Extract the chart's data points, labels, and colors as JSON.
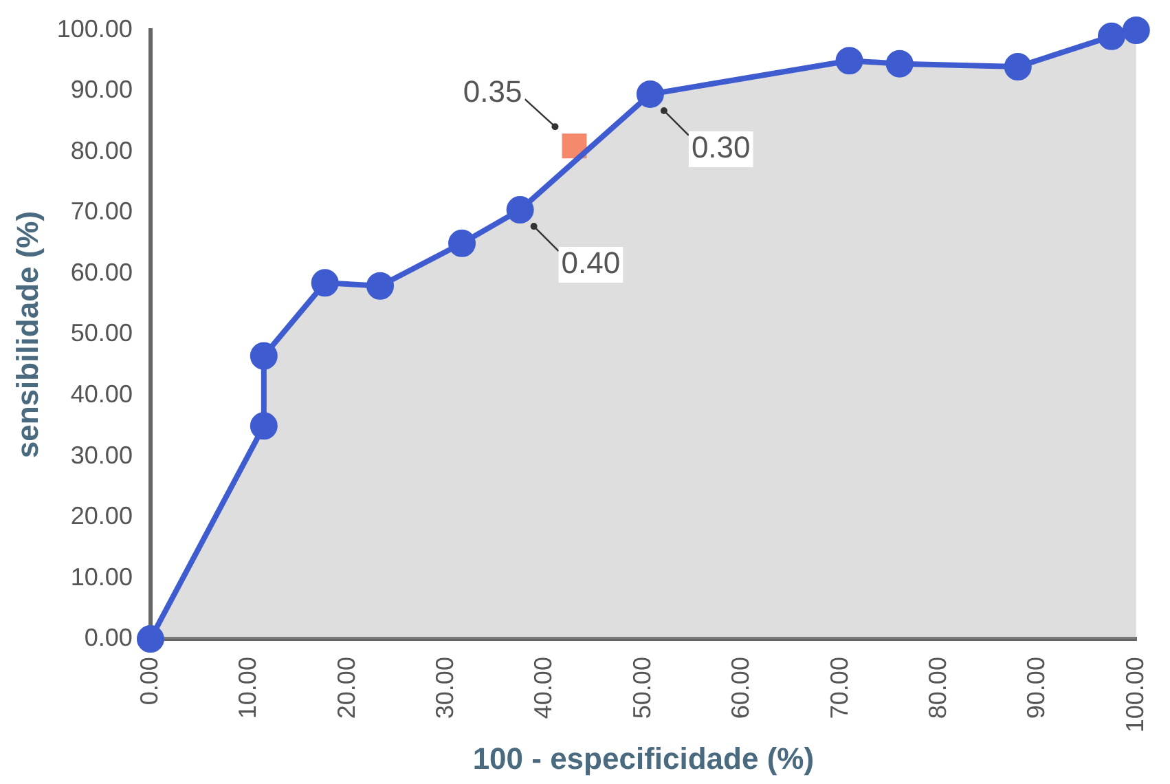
{
  "chart_data": {
    "type": "area",
    "xlabel": "100 - especificidade (%)",
    "ylabel": "sensibilidade (%)",
    "xlim": [
      0,
      100
    ],
    "ylim": [
      0,
      100
    ],
    "xticks": [
      {
        "value": 0,
        "label": "0.00"
      },
      {
        "value": 10,
        "label": "10.00"
      },
      {
        "value": 20,
        "label": "20.00"
      },
      {
        "value": 30,
        "label": "30.00"
      },
      {
        "value": 40,
        "label": "40.00"
      },
      {
        "value": 50,
        "label": "50.00"
      },
      {
        "value": 60,
        "label": "60.00"
      },
      {
        "value": 70,
        "label": "70.00"
      },
      {
        "value": 80,
        "label": "80.00"
      },
      {
        "value": 90,
        "label": "90.00"
      },
      {
        "value": 100,
        "label": "100.00"
      }
    ],
    "yticks": [
      {
        "value": 0,
        "label": "0.00"
      },
      {
        "value": 10,
        "label": "10.00"
      },
      {
        "value": 20,
        "label": "20.00"
      },
      {
        "value": 30,
        "label": "30.00"
      },
      {
        "value": 40,
        "label": "40.00"
      },
      {
        "value": 50,
        "label": "50.00"
      },
      {
        "value": 60,
        "label": "60.00"
      },
      {
        "value": 70,
        "label": "70.00"
      },
      {
        "value": 80,
        "label": "80.00"
      },
      {
        "value": 90,
        "label": "90.00"
      },
      {
        "value": 100,
        "label": "100.00"
      }
    ],
    "grid": false,
    "legend": false,
    "marker": "circle",
    "series": [
      {
        "color": "#3f5bd0",
        "x": [
          0,
          11.5,
          11.5,
          17.7,
          23.3,
          31.6,
          37.5,
          50.7,
          70.9,
          76,
          88,
          97.5,
          100
        ],
        "values": [
          0,
          35,
          46.5,
          58.5,
          58,
          65,
          70.5,
          89.5,
          95,
          94.5,
          94,
          99,
          100
        ]
      },
      {
        "type": "scatter",
        "color": "#f4896b",
        "marker": "square",
        "x": [
          43
        ],
        "values": [
          81
        ]
      }
    ],
    "annotations": [
      {
        "text": "0.35",
        "x": 43,
        "y": 81
      },
      {
        "text": "0.40",
        "x": 37.5,
        "y": 70.5
      },
      {
        "text": "0.30",
        "x": 50.7,
        "y": 89.5
      }
    ]
  }
}
